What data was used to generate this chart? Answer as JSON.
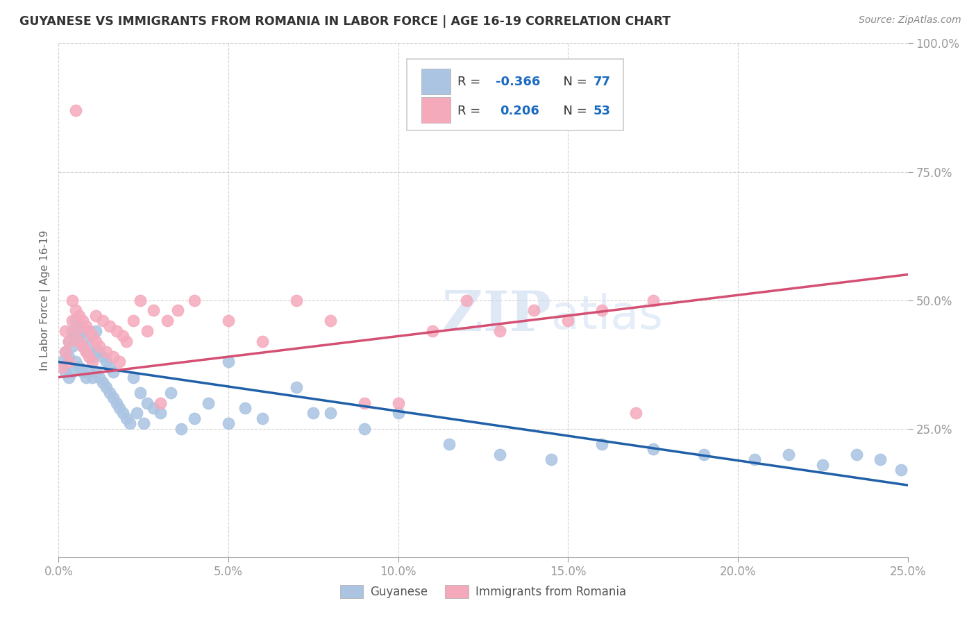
{
  "title": "GUYANESE VS IMMIGRANTS FROM ROMANIA IN LABOR FORCE | AGE 16-19 CORRELATION CHART",
  "source": "Source: ZipAtlas.com",
  "ylabel": "In Labor Force | Age 16-19",
  "xlim": [
    0.0,
    0.25
  ],
  "ylim": [
    0.0,
    1.0
  ],
  "xticks": [
    0.0,
    0.05,
    0.1,
    0.15,
    0.2,
    0.25
  ],
  "yticks": [
    0.25,
    0.5,
    0.75,
    1.0
  ],
  "ytick_labels_right": [
    "25.0%",
    "50.0%",
    "75.0%",
    "100.0%"
  ],
  "xtick_labels": [
    "0.0%",
    "5.0%",
    "10.0%",
    "15.0%",
    "20.0%",
    "25.0%"
  ],
  "legend_r_blue": "-0.366",
  "legend_n_blue": "77",
  "legend_r_pink": "0.206",
  "legend_n_pink": "53",
  "blue_color": "#aac4e2",
  "pink_color": "#f5aabc",
  "blue_line_color": "#2060a8",
  "pink_line_color": "#d44f72",
  "watermark_color": "#c5d8f0",
  "blue_scatter_x": [
    0.001,
    0.002,
    0.002,
    0.003,
    0.003,
    0.003,
    0.004,
    0.004,
    0.004,
    0.005,
    0.005,
    0.005,
    0.006,
    0.006,
    0.006,
    0.007,
    0.007,
    0.007,
    0.008,
    0.008,
    0.008,
    0.009,
    0.009,
    0.009,
    0.01,
    0.01,
    0.01,
    0.011,
    0.011,
    0.011,
    0.012,
    0.012,
    0.013,
    0.013,
    0.014,
    0.014,
    0.015,
    0.015,
    0.016,
    0.016,
    0.017,
    0.018,
    0.019,
    0.02,
    0.021,
    0.022,
    0.023,
    0.024,
    0.025,
    0.026,
    0.028,
    0.03,
    0.033,
    0.036,
    0.04,
    0.044,
    0.05,
    0.055,
    0.06,
    0.07,
    0.08,
    0.09,
    0.1,
    0.115,
    0.13,
    0.145,
    0.16,
    0.175,
    0.19,
    0.205,
    0.215,
    0.225,
    0.235,
    0.242,
    0.248,
    0.05,
    0.075
  ],
  "blue_scatter_y": [
    0.38,
    0.36,
    0.4,
    0.35,
    0.39,
    0.42,
    0.36,
    0.41,
    0.44,
    0.38,
    0.43,
    0.46,
    0.37,
    0.42,
    0.45,
    0.36,
    0.41,
    0.44,
    0.35,
    0.4,
    0.43,
    0.36,
    0.41,
    0.44,
    0.35,
    0.39,
    0.43,
    0.36,
    0.4,
    0.44,
    0.35,
    0.4,
    0.34,
    0.39,
    0.33,
    0.38,
    0.32,
    0.37,
    0.31,
    0.36,
    0.3,
    0.29,
    0.28,
    0.27,
    0.26,
    0.35,
    0.28,
    0.32,
    0.26,
    0.3,
    0.29,
    0.28,
    0.32,
    0.25,
    0.27,
    0.3,
    0.26,
    0.29,
    0.27,
    0.33,
    0.28,
    0.25,
    0.28,
    0.22,
    0.2,
    0.19,
    0.22,
    0.21,
    0.2,
    0.19,
    0.2,
    0.18,
    0.2,
    0.19,
    0.17,
    0.38,
    0.28
  ],
  "pink_scatter_x": [
    0.001,
    0.002,
    0.002,
    0.003,
    0.003,
    0.004,
    0.004,
    0.005,
    0.005,
    0.006,
    0.006,
    0.007,
    0.007,
    0.008,
    0.008,
    0.009,
    0.009,
    0.01,
    0.01,
    0.011,
    0.011,
    0.012,
    0.013,
    0.014,
    0.015,
    0.016,
    0.017,
    0.018,
    0.019,
    0.02,
    0.022,
    0.024,
    0.026,
    0.028,
    0.03,
    0.032,
    0.035,
    0.04,
    0.05,
    0.06,
    0.07,
    0.08,
    0.09,
    0.1,
    0.11,
    0.12,
    0.13,
    0.14,
    0.15,
    0.16,
    0.17,
    0.175,
    0.005
  ],
  "pink_scatter_y": [
    0.37,
    0.4,
    0.44,
    0.38,
    0.42,
    0.46,
    0.5,
    0.44,
    0.48,
    0.42,
    0.47,
    0.41,
    0.46,
    0.4,
    0.45,
    0.39,
    0.44,
    0.38,
    0.43,
    0.42,
    0.47,
    0.41,
    0.46,
    0.4,
    0.45,
    0.39,
    0.44,
    0.38,
    0.43,
    0.42,
    0.46,
    0.5,
    0.44,
    0.48,
    0.3,
    0.46,
    0.48,
    0.5,
    0.46,
    0.42,
    0.5,
    0.46,
    0.3,
    0.3,
    0.44,
    0.5,
    0.44,
    0.48,
    0.46,
    0.48,
    0.28,
    0.5,
    0.87
  ]
}
